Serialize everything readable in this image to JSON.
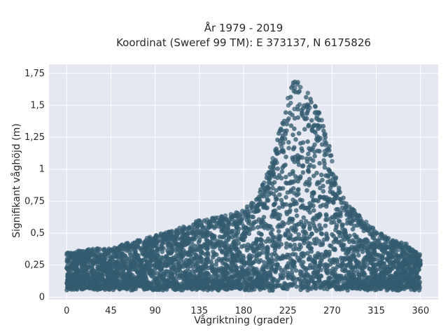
{
  "chart_data": {
    "type": "scatter",
    "title_line1": "År 1979 - 2019",
    "title_line2": "Koordinat (Sweref 99 TM): E 373137, N 6175826",
    "xlabel": "Vågriktning (grader)",
    "ylabel": "Signifikant våghöjd (m)",
    "xlim": [
      -18,
      378
    ],
    "ylim": [
      -0.02,
      1.82
    ],
    "x_ticks": [
      0,
      45,
      90,
      135,
      180,
      225,
      270,
      315,
      360
    ],
    "x_tick_labels": [
      "0",
      "45",
      "90",
      "135",
      "180",
      "225",
      "270",
      "315",
      "360"
    ],
    "y_ticks": [
      0,
      0.25,
      0.5,
      0.75,
      1.0,
      1.25,
      1.5,
      1.75
    ],
    "y_tick_labels": [
      "0",
      "0,25",
      "0,5",
      "0,75",
      "1",
      "1,25",
      "1,5",
      "1,75"
    ],
    "grid": true,
    "marker_color": "#335b70",
    "plot_background": "#e5e8f0",
    "upper_envelope": {
      "x": [
        0,
        10,
        20,
        30,
        45,
        60,
        75,
        90,
        105,
        120,
        135,
        150,
        165,
        180,
        195,
        205,
        215,
        225,
        232,
        240,
        250,
        260,
        270,
        280,
        290,
        300,
        315,
        330,
        345,
        360
      ],
      "y": [
        0.35,
        0.36,
        0.37,
        0.38,
        0.38,
        0.42,
        0.45,
        0.48,
        0.52,
        0.56,
        0.6,
        0.62,
        0.65,
        0.68,
        0.8,
        1.0,
        1.25,
        1.6,
        1.72,
        1.65,
        1.55,
        1.4,
        1.1,
        0.8,
        0.7,
        0.62,
        0.52,
        0.45,
        0.42,
        0.33
      ]
    },
    "lower_bound_m": 0.05
  }
}
